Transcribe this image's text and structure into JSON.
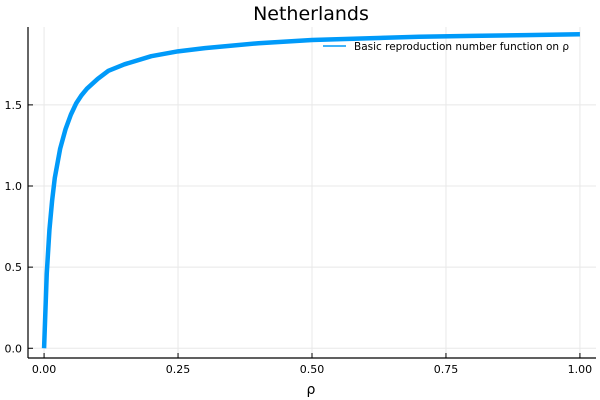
{
  "chart_data": {
    "type": "line",
    "title": "Netherlands",
    "xlabel": "ρ",
    "ylabel": "",
    "xlim": [
      -0.03,
      1.03
    ],
    "ylim": [
      -0.06,
      1.98
    ],
    "xticks": [
      0.0,
      0.25,
      0.5,
      0.75,
      1.0
    ],
    "xtick_labels": [
      "0.00",
      "0.25",
      "0.50",
      "0.75",
      "1.00"
    ],
    "yticks": [
      0.0,
      0.5,
      1.0,
      1.5
    ],
    "ytick_labels": [
      "0.0",
      "0.5",
      "1.0",
      "1.5"
    ],
    "grid": true,
    "legend_position": "top-right",
    "series": [
      {
        "name": "Basic reproduction number function on ρ",
        "color": "#009af9",
        "x": [
          0.0,
          0.005,
          0.01,
          0.015,
          0.02,
          0.03,
          0.04,
          0.05,
          0.06,
          0.07,
          0.08,
          0.1,
          0.12,
          0.15,
          0.2,
          0.25,
          0.3,
          0.4,
          0.5,
          0.6,
          0.7,
          0.8,
          0.9,
          1.0
        ],
        "y": [
          0.0,
          0.46,
          0.73,
          0.91,
          1.05,
          1.23,
          1.35,
          1.44,
          1.51,
          1.56,
          1.6,
          1.66,
          1.71,
          1.75,
          1.8,
          1.83,
          1.85,
          1.88,
          1.9,
          1.91,
          1.92,
          1.925,
          1.93,
          1.935
        ]
      }
    ]
  }
}
